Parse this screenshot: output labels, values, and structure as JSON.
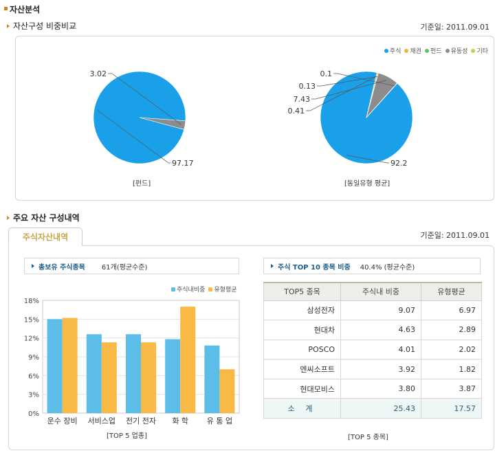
{
  "section1": {
    "title": "자산분석"
  },
  "asset_compare": {
    "subtitle": "자산구성 비중비교",
    "date": "기준일: 2011.09.01",
    "legend": [
      {
        "label": "주식",
        "color": "#1aa0e8"
      },
      {
        "label": "채권",
        "color": "#f2b33d"
      },
      {
        "label": "펀드",
        "color": "#5bc66a"
      },
      {
        "label": "유동성",
        "color": "#8c8c8c"
      },
      {
        "label": "기타",
        "color": "#b8d84a"
      }
    ],
    "fund_caption": "[펀드]",
    "peer_caption": "[동일유형 평균]"
  },
  "section2": {
    "title": "주요 자산 구성내역",
    "date": "기준일: 2011.09.01",
    "tab": "주식자산내역"
  },
  "holdings": {
    "label": "총보유 주식종목",
    "value": "61개(평균수준)"
  },
  "top10": {
    "label": "주식 TOP 10 종목 비중",
    "value": "40.4% (평균수준)"
  },
  "bar_legend": [
    {
      "label": "주식내비중",
      "color": "#5bbde8"
    },
    {
      "label": "유형평균",
      "color": "#f9b945"
    }
  ],
  "bar_caption": "[TOP 5 업종]",
  "table": {
    "headers": [
      "TOP5 종목",
      "주식내 비중",
      "유형평균"
    ],
    "rows": [
      [
        "삼성전자",
        "9.07",
        "6.97"
      ],
      [
        "현대차",
        "4.63",
        "2.89"
      ],
      [
        "POSCO",
        "4.01",
        "2.02"
      ],
      [
        "엔씨소프트",
        "3.92",
        "1.82"
      ],
      [
        "현대모비스",
        "3.80",
        "3.87"
      ]
    ],
    "sum": [
      "소 계",
      "25.43",
      "17.57"
    ],
    "caption": "[TOP 5 종목]"
  },
  "chart_data": [
    {
      "type": "pie",
      "title": "[펀드]",
      "labels": [
        "주식",
        "유동성"
      ],
      "values": [
        97.17,
        3.02
      ],
      "colors": [
        "#1aa0e8",
        "#8c8c8c"
      ],
      "data_labels": [
        "97.17",
        "3.02"
      ]
    },
    {
      "type": "pie",
      "title": "[동일유형 평균]",
      "labels": [
        "주식",
        "채권",
        "펀드",
        "유동성",
        "기타"
      ],
      "values": [
        92.2,
        0.41,
        0.13,
        7.43,
        0.1
      ],
      "colors": [
        "#1aa0e8",
        "#f2b33d",
        "#5bc66a",
        "#8c8c8c",
        "#b8d84a"
      ],
      "data_labels": [
        "92.2",
        "0.41",
        "0.13",
        "7.43",
        "0.1"
      ]
    },
    {
      "type": "bar",
      "categories": [
        "운수 장비",
        "서비스업",
        "전기 전자",
        "화 학",
        "유 통 업"
      ],
      "series": [
        {
          "name": "주식내비중",
          "values": [
            15.0,
            12.6,
            12.6,
            11.8,
            10.8
          ],
          "color": "#5bbde8"
        },
        {
          "name": "유형평균",
          "values": [
            15.2,
            11.3,
            11.3,
            17.0,
            7.0
          ],
          "color": "#f9b945"
        }
      ],
      "yticks": [
        "0%",
        "3%",
        "6%",
        "9%",
        "12%",
        "15%",
        "18%"
      ],
      "ylim": [
        0,
        18
      ],
      "xlabel": "[TOP 5 업종]"
    }
  ]
}
